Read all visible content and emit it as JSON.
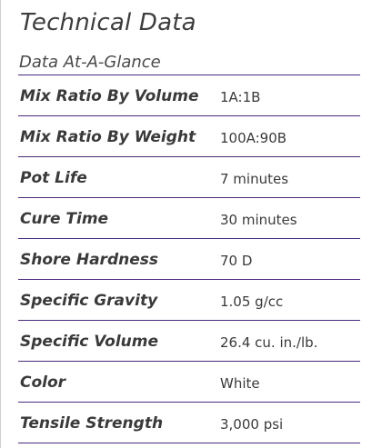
{
  "header": {
    "title": "Technical Data",
    "subtitle": "Data At-A-Glance"
  },
  "colors": {
    "rule": "#4b2a7b",
    "text": "#3a3a3a"
  },
  "table": {
    "rows": [
      {
        "label": "Mix Ratio By Volume",
        "value": "1A:1B"
      },
      {
        "label": "Mix Ratio By Weight",
        "value": "100A:90B"
      },
      {
        "label": "Pot Life",
        "value": "7 minutes"
      },
      {
        "label": "Cure Time",
        "value": "30 minutes"
      },
      {
        "label": "Shore Hardness",
        "value": "70 D"
      },
      {
        "label": "Specific Gravity",
        "value": "1.05 g/cc"
      },
      {
        "label": "Specific Volume",
        "value": "26.4 cu. in./lb."
      },
      {
        "label": "Color",
        "value": "White"
      },
      {
        "label": "Tensile Strength",
        "value": "3,000 psi"
      }
    ]
  }
}
